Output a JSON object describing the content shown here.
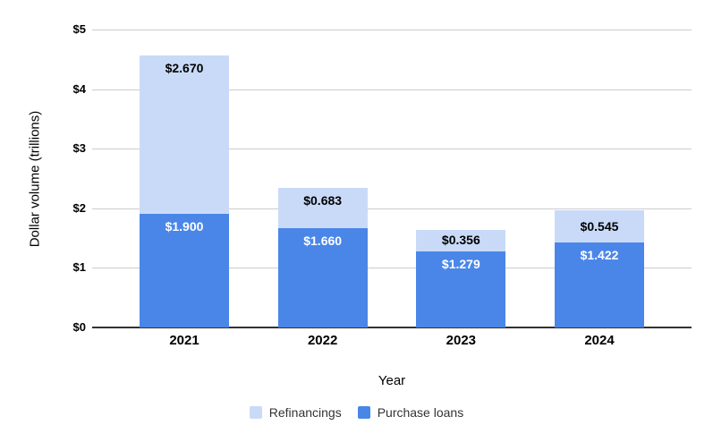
{
  "chart_data": {
    "type": "bar",
    "stacked": true,
    "categories": [
      "2021",
      "2022",
      "2023",
      "2024"
    ],
    "series": [
      {
        "name": "Purchase loans",
        "color": "#4a86e8",
        "values": [
          1.9,
          1.66,
          1.279,
          1.422
        ],
        "data_labels": [
          "$1.900",
          "$1.660",
          "$1.279",
          "$1.422"
        ],
        "label_color": "#ffffff"
      },
      {
        "name": "Refinancings",
        "color": "#c9daf8",
        "values": [
          2.67,
          0.683,
          0.356,
          0.545
        ],
        "data_labels": [
          "$2.670",
          "$0.683",
          "$0.356",
          "$0.545"
        ],
        "label_color": "#000000"
      }
    ],
    "xlabel": "Year",
    "ylabel": "Dollar volume (trillions)",
    "ylim": [
      0,
      5
    ],
    "ytick_labels": [
      "$0",
      "$1",
      "$2",
      "$3",
      "$4",
      "$5"
    ],
    "grid": true,
    "gridline_color": "#cccccc",
    "axis_line_color": "#333333",
    "legend_position": "bottom"
  },
  "axes": {
    "xlabel": "Year",
    "ylabel": "Dollar volume (trillions)"
  },
  "legend": {
    "items": [
      {
        "label": "Refinancings",
        "color": "#c9daf8"
      },
      {
        "label": "Purchase loans",
        "color": "#4a86e8"
      }
    ]
  }
}
